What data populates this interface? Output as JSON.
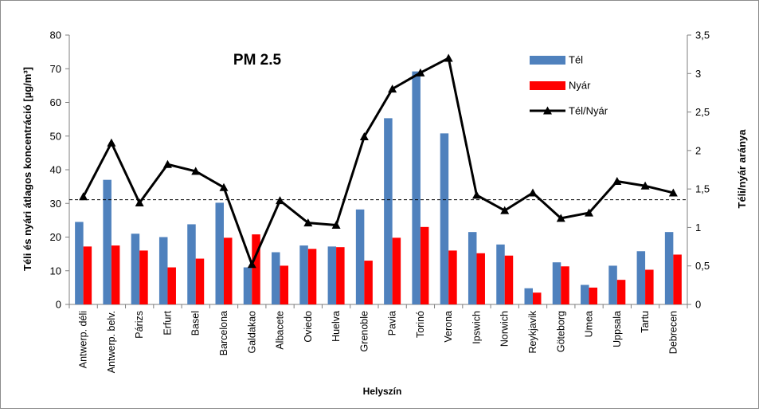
{
  "chart_data": {
    "type": "bar",
    "title": "PM 2.5",
    "xlabel": "Helyszín",
    "ylabel": "Téli és nyári átlagos koncentráció  [µg/m³]",
    "y2label": "Téli/nyár aránya",
    "ylim": [
      0,
      80
    ],
    "y2lim": [
      0,
      3.5
    ],
    "yticks": [
      "0",
      "10",
      "20",
      "30",
      "40",
      "50",
      "60",
      "70",
      "80"
    ],
    "y2ticks": [
      "0",
      "0,5",
      "1",
      "1,5",
      "2",
      "2,5",
      "3",
      "3,5"
    ],
    "legend_position": "top-right",
    "grid": false,
    "categories": [
      "Antwerp. déli",
      "Antwerp. belv.",
      "Párizs",
      "Erfurt",
      "Basel",
      "Barcelona",
      "Galdakao",
      "Albacete",
      "Oviedo",
      "Huelva",
      "Grenoble",
      "Pavia",
      "Torinó",
      "Verona",
      "Ipswich",
      "Norwich",
      "Reykjavik",
      "Göteborg",
      "Umea",
      "Uppsala",
      "Tartu",
      "Debrecen"
    ],
    "series": [
      {
        "name": "Tél",
        "type": "bar",
        "axis": "left",
        "color": "#4f81bd",
        "values": [
          24.5,
          37,
          21,
          20,
          23.8,
          30.2,
          11,
          15.5,
          17.5,
          17.2,
          28.2,
          55.3,
          69.2,
          50.8,
          21.5,
          17.8,
          4.8,
          12.5,
          5.8,
          11.5,
          15.8,
          21.5
        ]
      },
      {
        "name": "Nyár",
        "type": "bar",
        "axis": "left",
        "color": "#ff0000",
        "values": [
          17.2,
          17.5,
          16,
          11,
          13.6,
          19.8,
          20.8,
          11.5,
          16.5,
          17,
          13,
          19.8,
          23,
          16,
          15.2,
          14.5,
          3.5,
          11.3,
          5,
          7.3,
          10.3,
          14.8
        ]
      },
      {
        "name": "Tél/Nyár",
        "type": "line",
        "axis": "right",
        "color": "#000000",
        "values": [
          1.4,
          2.1,
          1.32,
          1.82,
          1.73,
          1.52,
          0.52,
          1.35,
          1.06,
          1.03,
          2.18,
          2.8,
          3.01,
          3.2,
          1.42,
          1.22,
          1.45,
          1.12,
          1.19,
          1.6,
          1.54,
          1.45
        ]
      }
    ],
    "reference_line": {
      "axis": "right",
      "value": 1.36,
      "style": "dashed"
    }
  }
}
